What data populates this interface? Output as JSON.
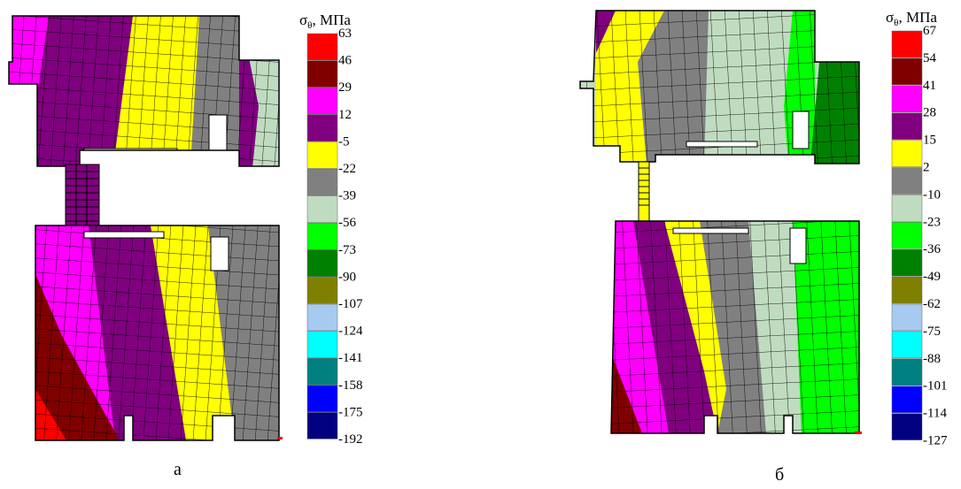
{
  "panels": [
    {
      "label": "а",
      "legend": {
        "symbol": "σ",
        "subscript": "θ",
        "unit": ", МПа",
        "levels": [
          {
            "value": "63",
            "color": "#ff0000"
          },
          {
            "value": "46",
            "color": "#800000"
          },
          {
            "value": "29",
            "color": "#ff00ff"
          },
          {
            "value": "12",
            "color": "#800080"
          },
          {
            "value": "-5",
            "color": "#ffff00"
          },
          {
            "value": "-22",
            "color": "#808080"
          },
          {
            "value": "-39",
            "color": "#c0dcc0"
          },
          {
            "value": "-56",
            "color": "#00ff00"
          },
          {
            "value": "-73",
            "color": "#008000"
          },
          {
            "value": "-90",
            "color": "#808000"
          },
          {
            "value": "-107",
            "color": "#a6caf0"
          },
          {
            "value": "-124",
            "color": "#00ffff"
          },
          {
            "value": "-141",
            "color": "#008080"
          },
          {
            "value": "-158",
            "color": "#0000ff"
          },
          {
            "value": "-175",
            "color": "#000080"
          },
          {
            "value": "-192",
            "color": null
          }
        ]
      }
    },
    {
      "label": "б",
      "legend": {
        "symbol": "σ",
        "subscript": "θ",
        "unit": ", МПа",
        "levels": [
          {
            "value": "67",
            "color": "#ff0000"
          },
          {
            "value": "54",
            "color": "#800000"
          },
          {
            "value": "41",
            "color": "#ff00ff"
          },
          {
            "value": "28",
            "color": "#800080"
          },
          {
            "value": "15",
            "color": "#ffff00"
          },
          {
            "value": "2",
            "color": "#808080"
          },
          {
            "value": "-10",
            "color": "#c0dcc0"
          },
          {
            "value": "-23",
            "color": "#00ff00"
          },
          {
            "value": "-36",
            "color": "#008000"
          },
          {
            "value": "-49",
            "color": "#808000"
          },
          {
            "value": "-62",
            "color": "#a6caf0"
          },
          {
            "value": "-75",
            "color": "#00ffff"
          },
          {
            "value": "-88",
            "color": "#008080"
          },
          {
            "value": "-101",
            "color": "#0000ff"
          },
          {
            "value": "-114",
            "color": "#000080"
          },
          {
            "value": "-127",
            "color": null
          }
        ]
      }
    }
  ]
}
